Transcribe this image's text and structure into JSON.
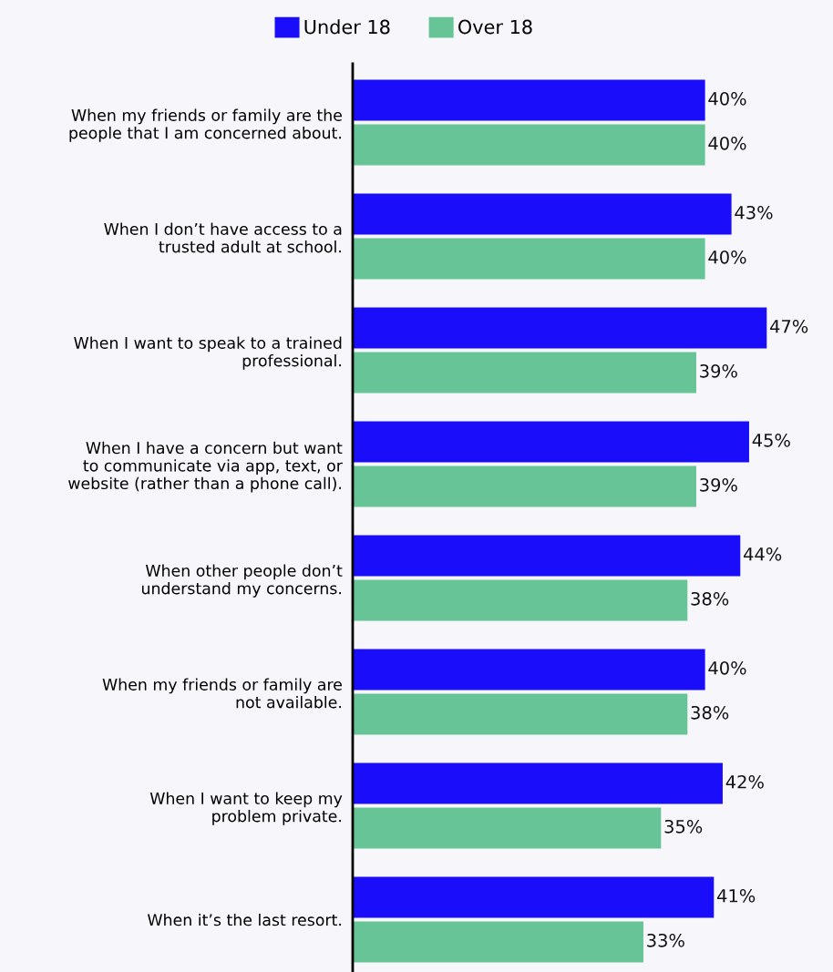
{
  "chart_data": {
    "type": "bar",
    "orientation": "horizontal",
    "categories": [
      "When my friends or family are the\npeople that I am concerned about.",
      "When I don’t have access to a\ntrusted adult at school.",
      "When I want to speak to a trained\nprofessional.",
      "When I have a concern but want\nto communicate via app, text, or\nwebsite (rather than a phone call).",
      "When other people don’t\nunderstand my concerns.",
      "When my friends or family are\nnot available.",
      "When I want to keep my\nproblem private.",
      "When it’s the last resort."
    ],
    "series": [
      {
        "name": "Under 18",
        "color": "#1a0dfa",
        "values": [
          40,
          43,
          47,
          45,
          44,
          40,
          42,
          41
        ],
        "value_labels": [
          "40%",
          "43%",
          "47%",
          "45%",
          "44%",
          "40%",
          "42%",
          "41%"
        ]
      },
      {
        "name": "Over 18",
        "color": "#66c497",
        "values": [
          40,
          40,
          39,
          39,
          38,
          38,
          35,
          33
        ],
        "value_labels": [
          "40%",
          "40%",
          "39%",
          "39%",
          "38%",
          "38%",
          "35%",
          "33%"
        ]
      }
    ],
    "tick_labels": "y",
    "legend": "top",
    "grid": false
  }
}
